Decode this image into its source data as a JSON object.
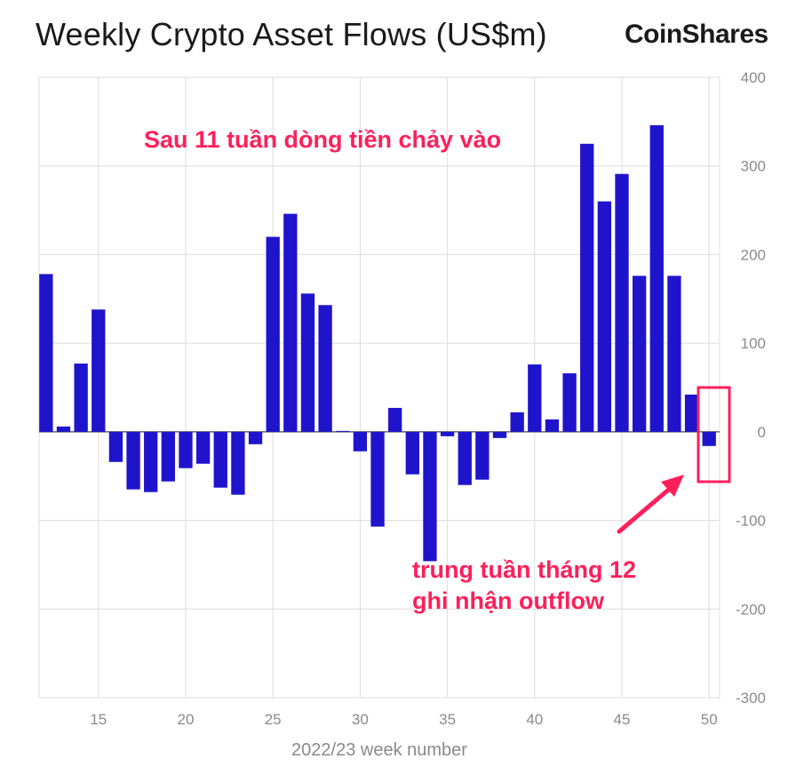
{
  "chart_data": {
    "type": "bar",
    "title": "Weekly Crypto Asset Flows (US$m)",
    "xlabel": "2022/23 week number",
    "ylabel": "",
    "x": [
      12,
      13,
      14,
      15,
      16,
      17,
      18,
      19,
      20,
      21,
      22,
      23,
      24,
      25,
      26,
      27,
      28,
      29,
      30,
      31,
      32,
      33,
      34,
      35,
      36,
      37,
      38,
      39,
      40,
      41,
      42,
      43,
      44,
      45,
      46,
      47,
      48,
      49,
      50
    ],
    "values": [
      178,
      6,
      77,
      138,
      -34,
      -65,
      -68,
      -56,
      -41,
      -36,
      -63,
      -71,
      -14,
      220,
      246,
      156,
      143,
      1,
      -22,
      -107,
      27,
      -48,
      -146,
      -5,
      -60,
      -54,
      -7,
      22,
      76,
      14,
      66,
      325,
      260,
      291,
      176,
      346,
      176,
      42,
      -16
    ],
    "ylim": [
      -300,
      400
    ],
    "yticks": [
      -300,
      -200,
      -100,
      0,
      100,
      200,
      300,
      400
    ],
    "xlim": [
      11.6,
      50.6
    ],
    "xticks": [
      15,
      20,
      25,
      30,
      35,
      40,
      45,
      50
    ],
    "grid": true,
    "bar_color": "#1f14cc",
    "highlight_color": "#ff1f5a",
    "highlight_week": 50
  },
  "header": {
    "title": "Weekly Crypto Asset Flows (US$m)",
    "brand": "CoinShares"
  },
  "annotations": {
    "top": "Sau 11 tuần dòng tiền chảy vào",
    "bottom_line1": "trung tuần tháng 12",
    "bottom_line2": "ghi nhận outflow"
  }
}
